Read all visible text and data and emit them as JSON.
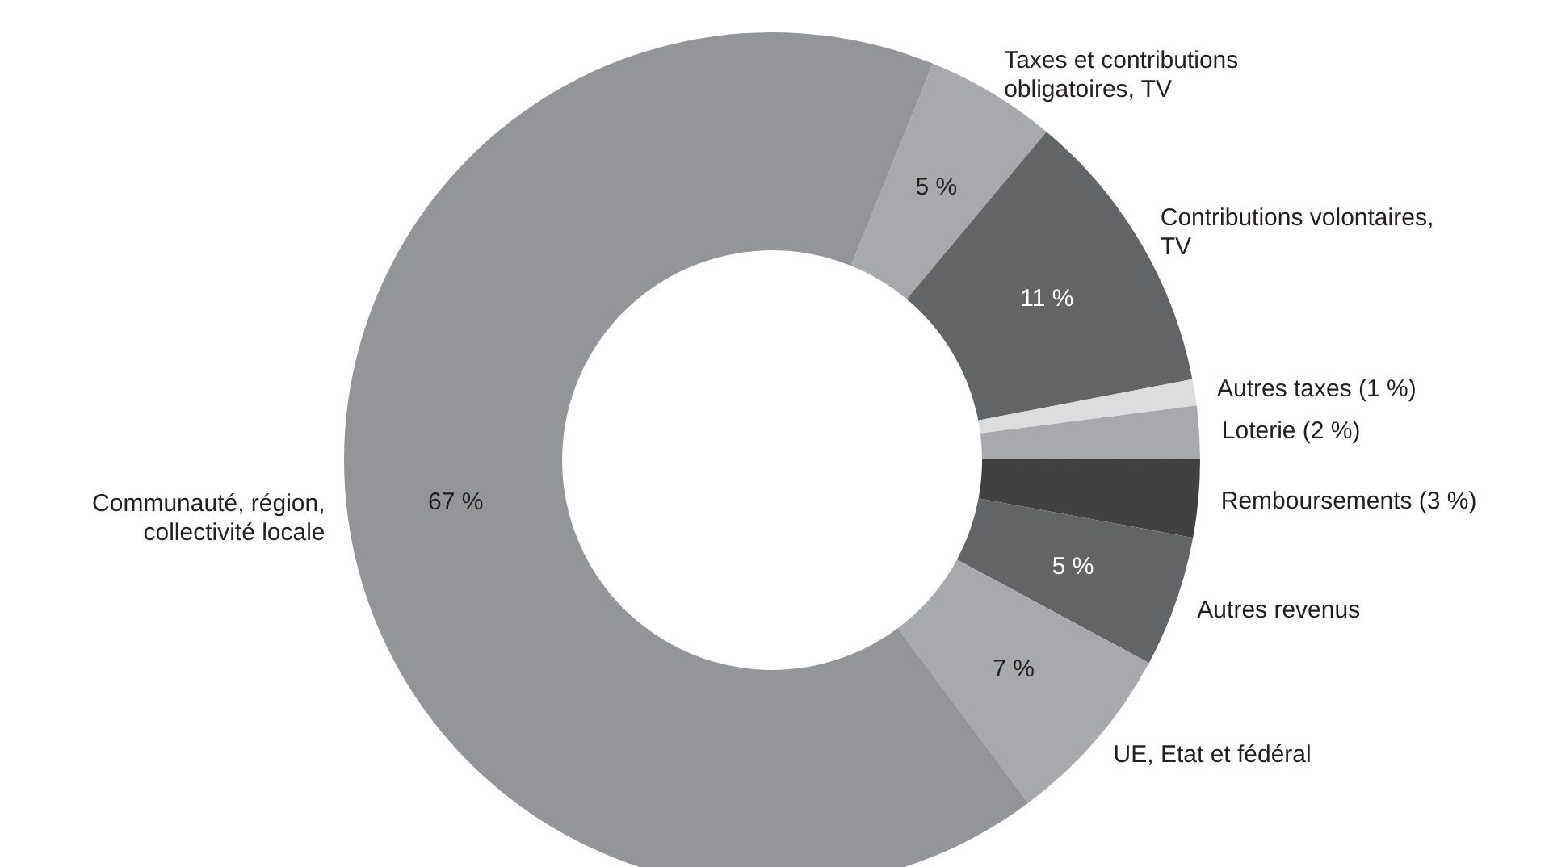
{
  "chart_data": {
    "type": "donut",
    "categories": [
      "Taxes et contributions\nobligatoires, TV",
      "Contributions volontaires,\nTV",
      "Autres taxes (1 %)",
      "Loterie (2 %)",
      "Remboursements (3 %)",
      "Autres revenus",
      "UE, Etat et fédéral",
      "Communauté, région,\ncollectivité locale"
    ],
    "values": [
      5,
      11,
      1,
      2,
      3,
      5,
      7,
      67
    ],
    "colors": [
      "#a7a9ac",
      "#636466",
      "#dcddde",
      "#a7a9ac",
      "#414042",
      "#636466",
      "#a7a9ac",
      "#939598"
    ],
    "value_labels": [
      "5 %",
      "11 %",
      null,
      null,
      null,
      "5 %",
      "7 %",
      "67 %"
    ]
  }
}
